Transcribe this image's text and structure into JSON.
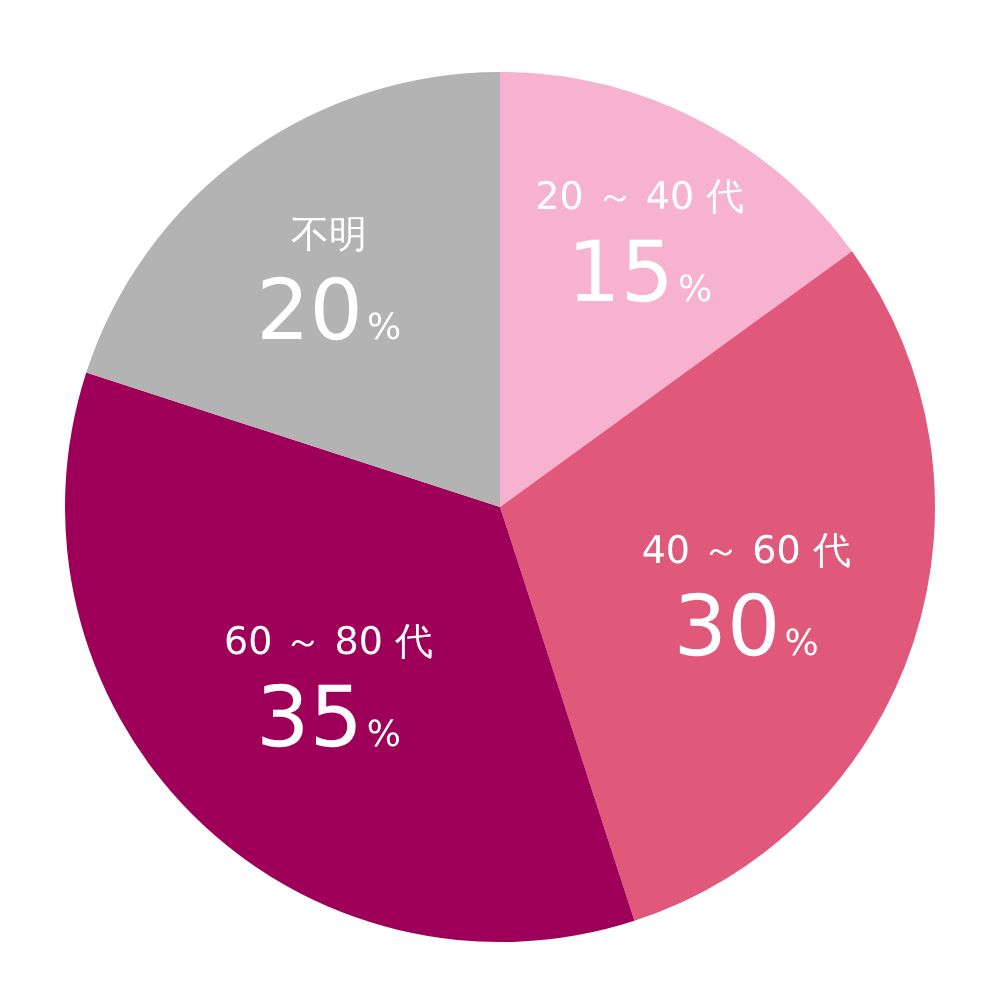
{
  "chart_data": {
    "type": "pie",
    "categories": [
      "20 ～ 40 代",
      "40 ～ 60 代",
      "60 ～ 80 代",
      "不明"
    ],
    "values": [
      15,
      30,
      35,
      20
    ],
    "colors": [
      "#f7b2d0",
      "#e0587a",
      "#9e0059",
      "#b3b3b3"
    ],
    "value_labels": [
      "15%",
      "30%",
      "35%",
      "20%"
    ]
  }
}
